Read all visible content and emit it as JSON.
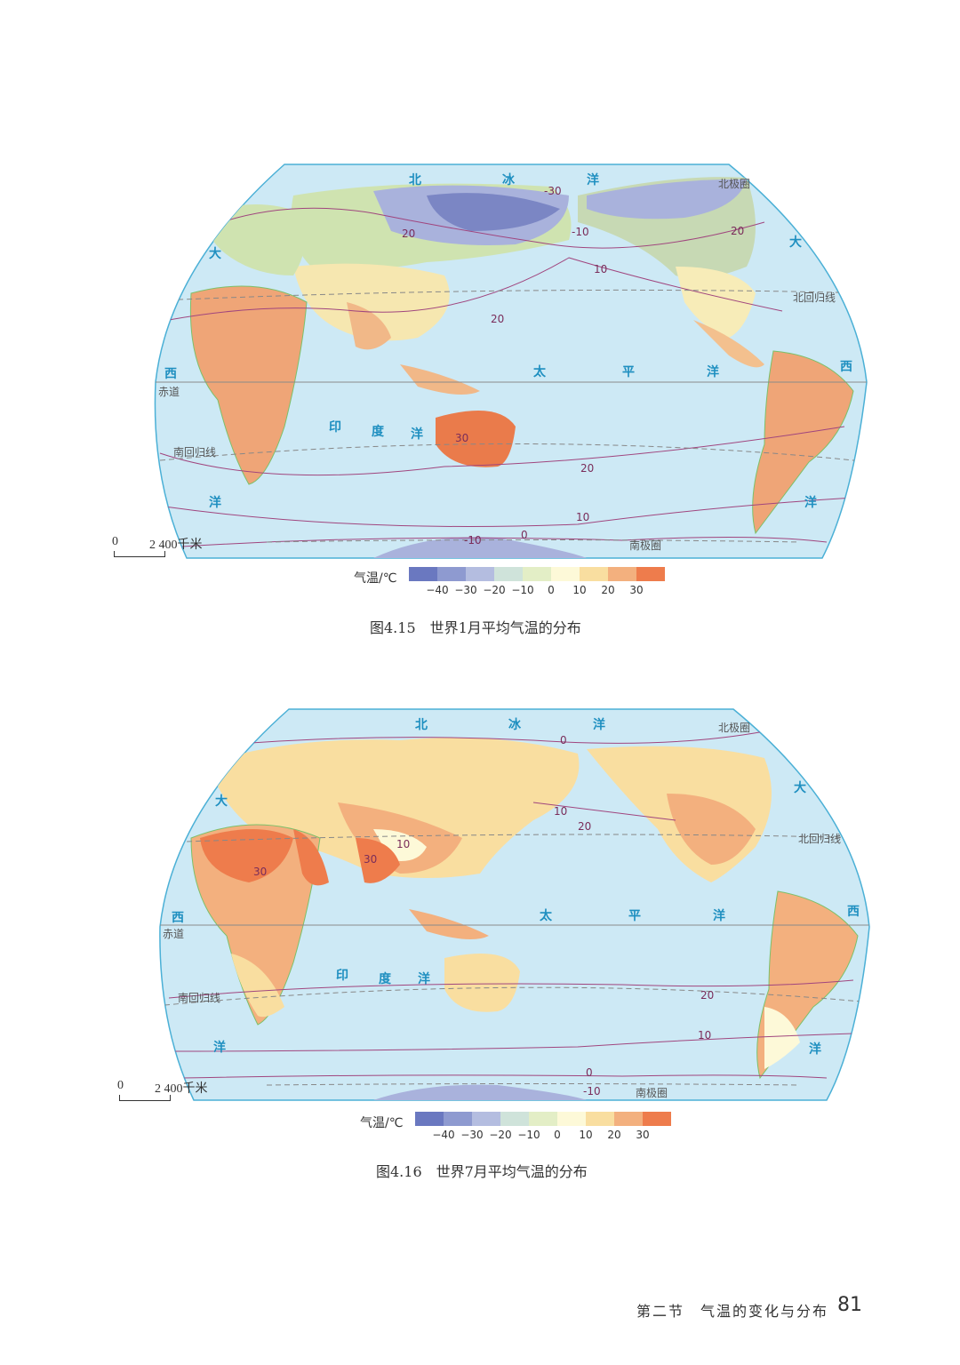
{
  "maps": [
    {
      "caption": "图4.15　世界1月平均气温的分布",
      "scale": {
        "zero": "0",
        "distance": "2 400千米"
      },
      "oceans": {
        "north_ice_1": "北",
        "north_ice_2": "冰",
        "north_ice_3": "洋",
        "arctic": "北极圈",
        "pacific_1": "太",
        "pacific_2": "平",
        "pacific_3": "洋",
        "indian_1": "印",
        "indian_2": "度",
        "indian_3": "洋",
        "atlantic_w1": "大",
        "atlantic_w2": "西",
        "atlantic_w3": "洋",
        "atlantic_e1": "大",
        "atlantic_e2": "西",
        "atlantic_e3": "洋"
      },
      "lines": {
        "tropic_n": "北回归线",
        "equator": "赤道",
        "tropic_s": "南回归线",
        "antarctic": "南极圈"
      },
      "isotherms": [
        "-30",
        "-10",
        "20",
        "10",
        "20",
        "30",
        "20",
        "10",
        "0",
        "-10",
        "20"
      ]
    },
    {
      "caption": "图4.16　世界7月平均气温的分布",
      "scale": {
        "zero": "0",
        "distance": "2 400千米"
      },
      "oceans": {
        "north_ice_1": "北",
        "north_ice_2": "冰",
        "north_ice_3": "洋",
        "arctic": "北极圈",
        "pacific_1": "太",
        "pacific_2": "平",
        "pacific_3": "洋",
        "indian_1": "印",
        "indian_2": "度",
        "indian_3": "洋",
        "atlantic_w1": "大",
        "atlantic_w2": "西",
        "atlantic_w3": "洋",
        "atlantic_e1": "大",
        "atlantic_e2": "西",
        "atlantic_e3": "洋"
      },
      "lines": {
        "tropic_n": "北回归线",
        "equator": "赤道",
        "tropic_s": "南回归线",
        "antarctic": "南极圈"
      },
      "isotherms": [
        "0",
        "10",
        "20",
        "10",
        "30",
        "30",
        "20",
        "10",
        "0",
        "-10"
      ]
    }
  ],
  "legend": {
    "title": "气温/℃",
    "ticks": [
      "−40",
      "−30",
      "−20",
      "−10",
      "0",
      "10",
      "20",
      "30"
    ],
    "colors": [
      "#6a78c0",
      "#8e9ad0",
      "#b4bde0",
      "#cfe3da",
      "#e3eec6",
      "#fdf9d8",
      "#f9dea0",
      "#f3b07e",
      "#ee7c4c"
    ]
  },
  "footer": {
    "section": "第二节　气温的变化与分布",
    "page": "81"
  }
}
